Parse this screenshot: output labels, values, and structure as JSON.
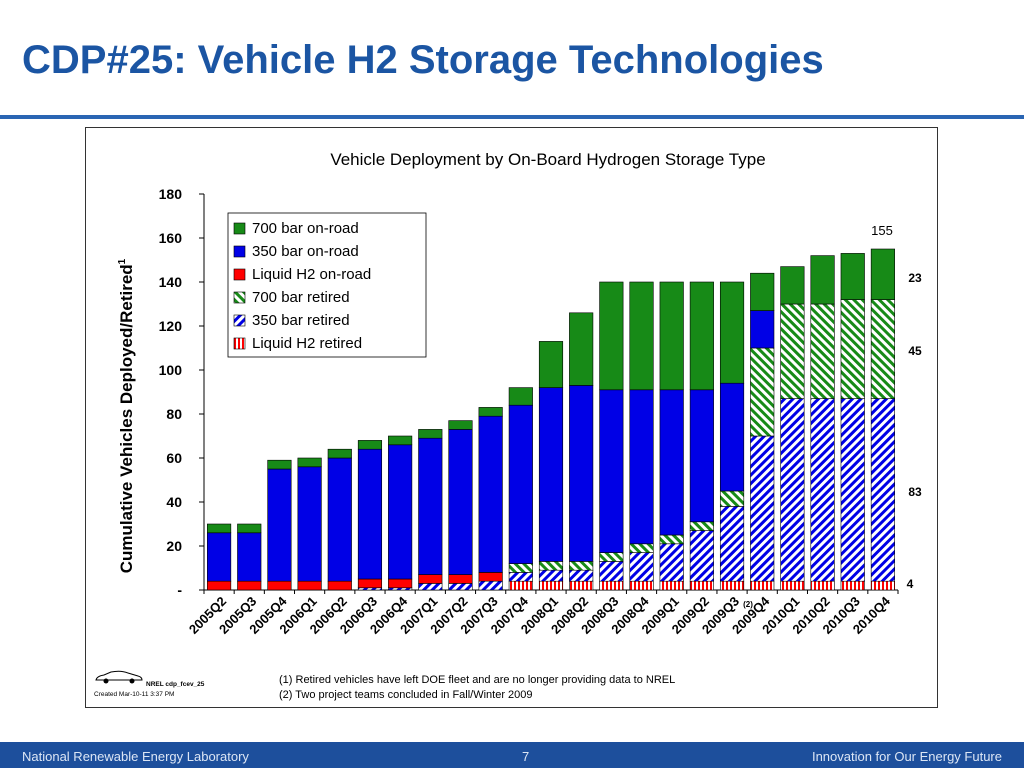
{
  "slide": {
    "title": "CDP#25: Vehicle H2 Storage Technologies"
  },
  "footer": {
    "left": "National Renewable Energy Laboratory",
    "page": "7",
    "right": "Innovation for Our Energy Future"
  },
  "chart_meta": {
    "source_id": "NREL cdp_fcev_25",
    "created": "Created Mar-10-11  3:37 PM",
    "footnote_1": "(1) Retired vehicles have left DOE fleet and are no longer providing data to NREL",
    "footnote_2": "(2) Two project teams concluded in Fall/Winter 2009",
    "note_marker": "(2)",
    "total_label": "155",
    "segment_labels": [
      "23",
      "45",
      "83",
      "4"
    ]
  },
  "colors": {
    "green": "#178a17",
    "blue": "#0000e6",
    "red": "#ff0000",
    "title_blue": "#1b55a3",
    "footer_blue": "#1d4f9c"
  },
  "chart_data": {
    "type": "bar",
    "stacked": true,
    "title": "Vehicle Deployment by On-Board Hydrogen Storage Type",
    "xlabel": "",
    "ylabel": "Cumulative Vehicles Deployed/Retired",
    "ylabel_sup": "1",
    "ylim": [
      0,
      180
    ],
    "yticks": [
      0,
      20,
      40,
      60,
      80,
      100,
      120,
      140,
      160,
      180
    ],
    "ytick_labels": [
      "-",
      "20",
      "40",
      "60",
      "80",
      "100",
      "120",
      "140",
      "160",
      "180"
    ],
    "grid": false,
    "legend_position": "top-left",
    "categories": [
      "2005Q2",
      "2005Q3",
      "2005Q4",
      "2006Q1",
      "2006Q2",
      "2006Q3",
      "2006Q4",
      "2007Q1",
      "2007Q2",
      "2007Q3",
      "2007Q4",
      "2008Q1",
      "2008Q2",
      "2008Q3",
      "2008Q4",
      "2009Q1",
      "2009Q2",
      "2009Q3",
      "2009Q4",
      "2010Q1",
      "2010Q2",
      "2010Q3",
      "2010Q4"
    ],
    "series": [
      {
        "name": "Liquid H2 retired",
        "pattern": "vertical",
        "color": "#ff0000",
        "values": [
          0,
          0,
          0,
          0,
          0,
          0,
          0,
          0,
          0,
          0,
          4,
          4,
          4,
          4,
          4,
          4,
          4,
          4,
          4,
          4,
          4,
          4,
          4
        ]
      },
      {
        "name": "350 bar retired",
        "pattern": "diagonal",
        "color": "#0000e6",
        "values": [
          0,
          0,
          0,
          0,
          0,
          1,
          1,
          3,
          3,
          4,
          4,
          5,
          5,
          9,
          13,
          17,
          23,
          34,
          66,
          83,
          83,
          83,
          83
        ]
      },
      {
        "name": "700 bar retired",
        "pattern": "diagonal",
        "color": "#178a17",
        "values": [
          0,
          0,
          0,
          0,
          0,
          0,
          0,
          0,
          0,
          0,
          4,
          4,
          4,
          4,
          4,
          4,
          4,
          7,
          40,
          43,
          43,
          45,
          45
        ]
      },
      {
        "name": "Liquid H2 on-road",
        "pattern": "solid",
        "color": "#ff0000",
        "values": [
          4,
          4,
          4,
          4,
          4,
          4,
          4,
          4,
          4,
          4,
          0,
          0,
          0,
          0,
          0,
          0,
          0,
          0,
          0,
          0,
          0,
          0,
          0
        ]
      },
      {
        "name": "350 bar on-road",
        "pattern": "solid",
        "color": "#0000e6",
        "values": [
          22,
          22,
          51,
          52,
          56,
          59,
          61,
          62,
          66,
          71,
          72,
          79,
          80,
          74,
          70,
          66,
          60,
          49,
          17,
          0,
          0,
          0,
          0
        ]
      },
      {
        "name": "700 bar on-road",
        "pattern": "solid",
        "color": "#178a17",
        "values": [
          4,
          4,
          4,
          4,
          4,
          4,
          4,
          4,
          4,
          4,
          8,
          21,
          33,
          49,
          49,
          49,
          49,
          46,
          17,
          17,
          22,
          21,
          23
        ]
      }
    ],
    "legend_order": [
      "700 bar on-road",
      "350 bar on-road",
      "Liquid H2 on-road",
      "700 bar retired",
      "350 bar retired",
      "Liquid H2 retired"
    ]
  }
}
